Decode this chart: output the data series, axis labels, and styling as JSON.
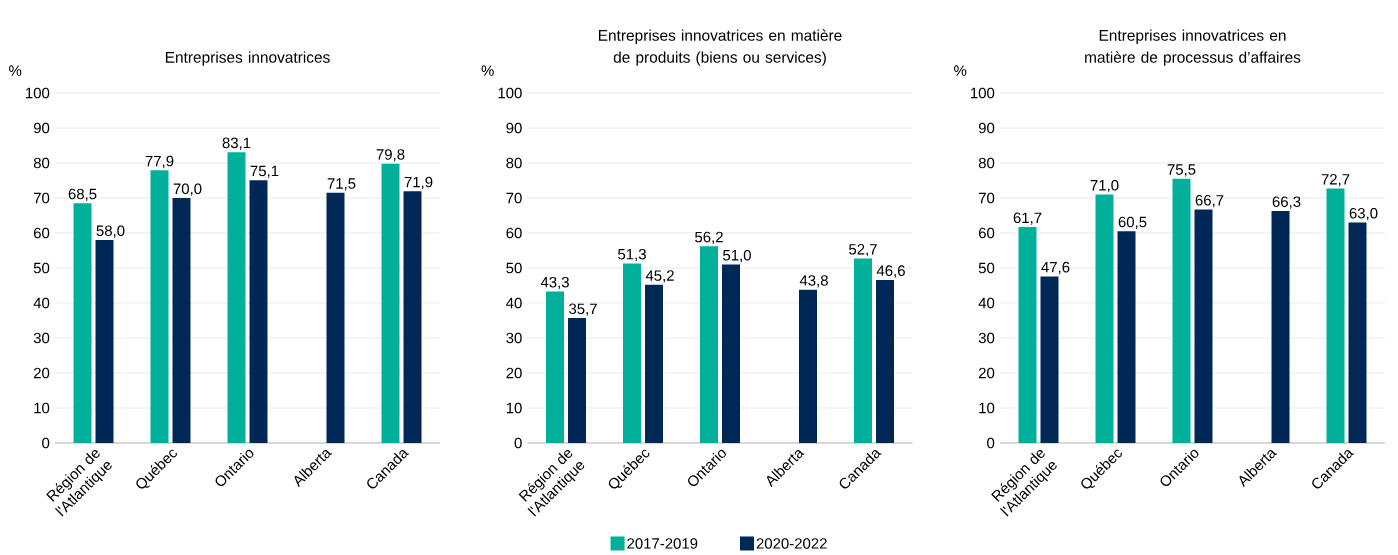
{
  "chart_data": [
    {
      "type": "bar",
      "title": "Entreprises innovatrices",
      "ylabel": "%",
      "categories": [
        "Région de l'Atlantique",
        "Québec",
        "Ontario",
        "Alberta",
        "Canada"
      ],
      "ylim": [
        0,
        100
      ],
      "yticks": [
        0,
        10,
        20,
        30,
        40,
        50,
        60,
        70,
        80,
        90,
        100
      ],
      "grid": "y",
      "legend": false,
      "series": [
        {
          "color": "#00b09b",
          "values": [
            68.5,
            77.9,
            83.1,
            null,
            79.8
          ],
          "value_labels": [
            "68,5",
            "77,9",
            "83,1",
            null,
            "79,8"
          ]
        },
        {
          "color": "#002856",
          "values": [
            58.0,
            70.0,
            75.1,
            71.5,
            71.9
          ],
          "value_labels": [
            "58,0",
            "70,0",
            "75,1",
            "71,5",
            "71,9"
          ]
        }
      ]
    },
    {
      "type": "bar",
      "title": "Entreprises innovatrices en matière de produits (biens ou services)",
      "ylabel": "%",
      "categories": [
        "Région de l'Atlantique",
        "Québec",
        "Ontario",
        "Alberta",
        "Canada"
      ],
      "ylim": [
        0,
        100
      ],
      "yticks": [
        0,
        10,
        20,
        30,
        40,
        50,
        60,
        70,
        80,
        90,
        100
      ],
      "grid": "y",
      "legend": "bottom",
      "series": [
        {
          "name": "2017-2019",
          "color": "#00b09b",
          "values": [
            43.3,
            51.3,
            56.2,
            null,
            52.7
          ],
          "value_labels": [
            "43,3",
            "51,3",
            "56,2",
            null,
            "52,7"
          ]
        },
        {
          "name": "2020-2022",
          "color": "#002856",
          "values": [
            35.7,
            45.2,
            51.0,
            43.8,
            46.6
          ],
          "value_labels": [
            "35,7",
            "45,2",
            "51,0",
            "43,8",
            "46,6"
          ]
        }
      ]
    },
    {
      "type": "bar",
      "title": "Entreprises innovatrices en matière de processus d’affaires",
      "ylabel": "%",
      "categories": [
        "Région de l'Atlantique",
        "Québec",
        "Ontario",
        "Alberta",
        "Canada"
      ],
      "ylim": [
        0,
        100
      ],
      "yticks": [
        0,
        10,
        20,
        30,
        40,
        50,
        60,
        70,
        80,
        90,
        100
      ],
      "grid": "y",
      "legend": false,
      "series": [
        {
          "color": "#00b09b",
          "values": [
            61.7,
            71.0,
            75.5,
            null,
            72.7
          ],
          "value_labels": [
            "61,7",
            "71,0",
            "75,5",
            null,
            "72,7"
          ]
        },
        {
          "color": "#002856",
          "values": [
            47.6,
            60.5,
            66.7,
            66.3,
            63.0
          ],
          "value_labels": [
            "47,6",
            "60,5",
            "66,7",
            "66,3",
            "63,0"
          ]
        }
      ]
    }
  ]
}
